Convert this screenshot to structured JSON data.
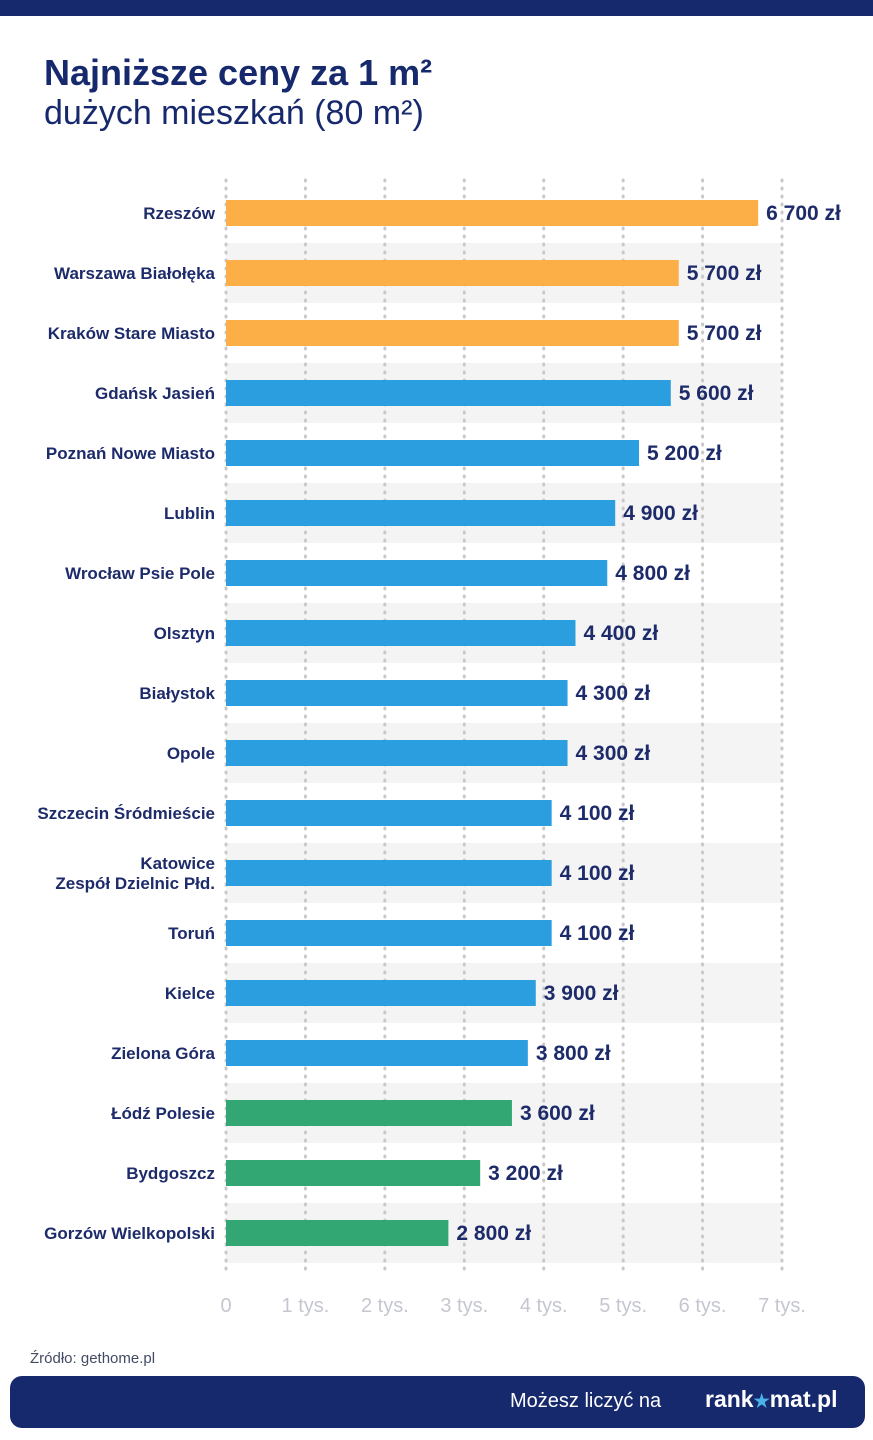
{
  "header": {
    "title": "Najniższe ceny za 1 m²",
    "subtitle": "dużych mieszkań (80 m²)"
  },
  "colors": {
    "orange": "#fcaf47",
    "blue": "#2a9ede",
    "green": "#33a773",
    "navy": "#17296d"
  },
  "chart_data": {
    "type": "bar",
    "orientation": "horizontal",
    "title": "Najniższe ceny za 1 m² dużych mieszkań (80 m²)",
    "xlabel": "",
    "ylabel": "",
    "xlim": [
      0,
      7000
    ],
    "grid": true,
    "ticks": [
      {
        "value": 0,
        "label": "0"
      },
      {
        "value": 1000,
        "label": "1 tys."
      },
      {
        "value": 2000,
        "label": "2 tys."
      },
      {
        "value": 3000,
        "label": "3 tys."
      },
      {
        "value": 4000,
        "label": "4 tys."
      },
      {
        "value": 5000,
        "label": "5 tys."
      },
      {
        "value": 6000,
        "label": "6 tys."
      },
      {
        "value": 7000,
        "label": "7 tys."
      }
    ],
    "categories": [
      [
        "Rzeszów"
      ],
      [
        "Warszawa Białołęka"
      ],
      [
        "Kraków Stare Miasto"
      ],
      [
        "Gdańsk Jasień"
      ],
      [
        "Poznań Nowe Miasto"
      ],
      [
        "Lublin"
      ],
      [
        "Wrocław Psie Pole"
      ],
      [
        "Olsztyn"
      ],
      [
        "Białystok"
      ],
      [
        "Opole"
      ],
      [
        "Szczecin Śródmieście"
      ],
      [
        "Katowice",
        "Zespół Dzielnic Płd."
      ],
      [
        "Toruń"
      ],
      [
        "Kielce"
      ],
      [
        "Zielona Góra"
      ],
      [
        "Łódź Polesie"
      ],
      [
        "Bydgoszcz"
      ],
      [
        "Gorzów Wielkopolski"
      ]
    ],
    "values": [
      6700,
      5700,
      5700,
      5600,
      5200,
      4900,
      4800,
      4400,
      4300,
      4300,
      4100,
      4100,
      4100,
      3900,
      3800,
      3600,
      3200,
      2800
    ],
    "value_labels": [
      "6 700 zł",
      "5 700 zł",
      "5 700 zł",
      "5 600 zł",
      "5 200 zł",
      "4 900 zł",
      "4 800 zł",
      "4 400 zł",
      "4 300 zł",
      "4 300 zł",
      "4 100 zł",
      "4 100 zł",
      "4 100 zł",
      "3 900 zł",
      "3 800 zł",
      "3 600 zł",
      "3 200 zł",
      "2 800 zł"
    ],
    "bar_colors": [
      "orange",
      "orange",
      "orange",
      "blue",
      "blue",
      "blue",
      "blue",
      "blue",
      "blue",
      "blue",
      "blue",
      "blue",
      "blue",
      "blue",
      "blue",
      "green",
      "green",
      "green"
    ]
  },
  "source": "Źródło: gethome.pl",
  "footer": {
    "tagline": "Możesz liczyć na",
    "logo_part1": "rank",
    "logo_star": "★",
    "logo_part2": "mat.pl"
  }
}
